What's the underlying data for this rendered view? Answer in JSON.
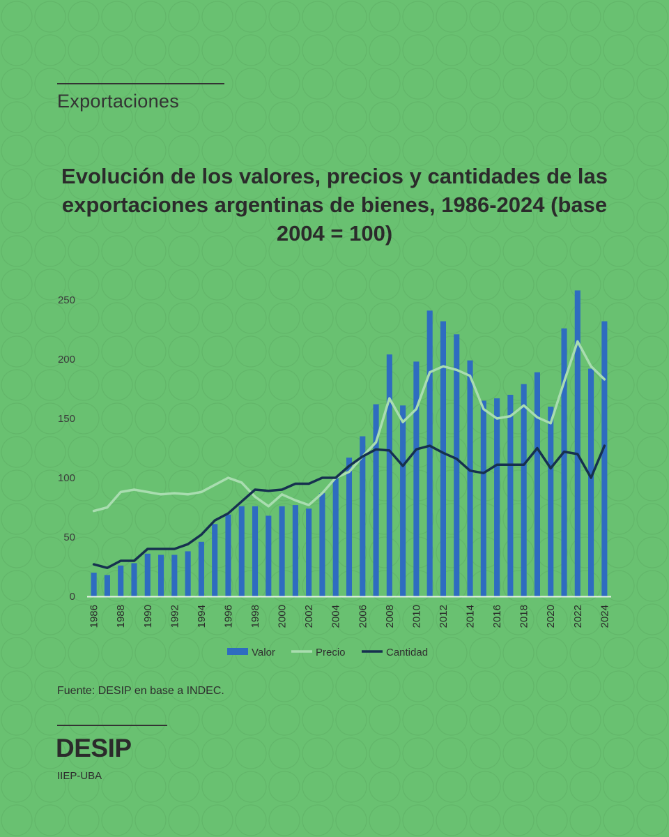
{
  "header": {
    "section": "Exportaciones"
  },
  "title": "Evolución de los valores, precios y cantidades de las exportaciones argentinas de bienes, 1986-2024 (base 2004 = 100)",
  "source": "Fuente: DESIP en base a INDEC.",
  "footer": {
    "brand": "DESIP",
    "sub": "IIEP-UBA"
  },
  "chart_data": {
    "type": "bar",
    "x": [
      1986,
      1987,
      1988,
      1989,
      1990,
      1991,
      1992,
      1993,
      1994,
      1995,
      1996,
      1997,
      1998,
      1999,
      2000,
      2001,
      2002,
      2003,
      2004,
      2005,
      2006,
      2007,
      2008,
      2009,
      2010,
      2011,
      2012,
      2013,
      2014,
      2015,
      2016,
      2017,
      2018,
      2019,
      2020,
      2021,
      2022,
      2023,
      2024
    ],
    "x_tick_labels": [
      "1986",
      "1988",
      "1990",
      "1992",
      "1994",
      "1996",
      "1998",
      "2000",
      "2002",
      "2004",
      "2006",
      "2008",
      "2010",
      "2012",
      "2014",
      "2016",
      "2018",
      "2020",
      "2022",
      "2024"
    ],
    "ylim": [
      0,
      250
    ],
    "y_ticks": [
      0,
      50,
      100,
      150,
      200,
      250
    ],
    "series": [
      {
        "name": "Valor",
        "kind": "bar",
        "color": "#2e6cc0",
        "values": [
          20,
          18,
          26,
          28,
          36,
          35,
          35,
          38,
          46,
          61,
          69,
          76,
          76,
          68,
          76,
          77,
          74,
          87,
          100,
          117,
          135,
          162,
          204,
          161,
          198,
          241,
          232,
          221,
          199,
          165,
          167,
          170,
          179,
          189,
          160,
          226,
          258,
          192,
          232
        ]
      },
      {
        "name": "Precio",
        "kind": "line",
        "color": "#a9ddb0",
        "values": [
          72,
          75,
          88,
          90,
          88,
          86,
          87,
          86,
          88,
          94,
          100,
          96,
          84,
          76,
          86,
          81,
          77,
          87,
          100,
          105,
          118,
          130,
          167,
          147,
          158,
          189,
          194,
          191,
          186,
          158,
          150,
          152,
          161,
          151,
          146,
          181,
          215,
          194,
          183
        ]
      },
      {
        "name": "Cantidad",
        "kind": "line",
        "color": "#16304f",
        "values": [
          27,
          24,
          30,
          30,
          40,
          40,
          40,
          44,
          52,
          64,
          70,
          80,
          90,
          89,
          90,
          95,
          95,
          100,
          100,
          110,
          118,
          124,
          123,
          110,
          124,
          127,
          121,
          116,
          106,
          104,
          111,
          111,
          111,
          125,
          108,
          122,
          120,
          100,
          127
        ]
      }
    ],
    "legend": [
      "Valor",
      "Precio",
      "Cantidad"
    ],
    "legend_position": "bottom",
    "grid": false
  }
}
